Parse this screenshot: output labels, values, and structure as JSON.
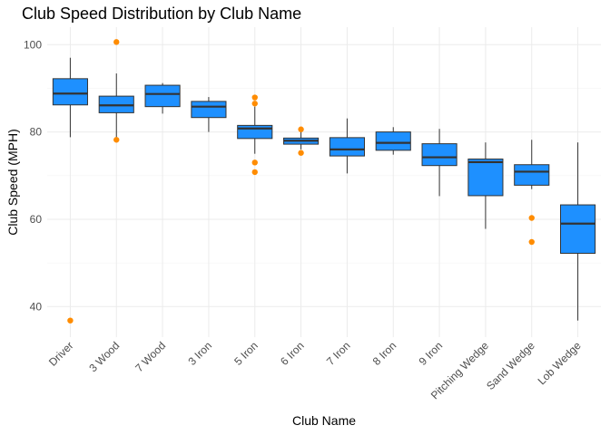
{
  "chart_data": {
    "type": "boxplot",
    "title": "Club Speed Distribution by Club Name",
    "xlabel": "Club Name",
    "ylabel": "Club Speed (MPH)",
    "ylim": [
      33,
      104
    ],
    "yticks": [
      40,
      60,
      80,
      100
    ],
    "grid": true,
    "legend": "none",
    "colors": {
      "box_fill": "#1e90ff",
      "outlier": "#ff8c00",
      "line": "#333333",
      "grid": "#ebebeb"
    },
    "categories": [
      "Driver",
      "3 Wood",
      "7 Wood",
      "3 Iron",
      "5 Iron",
      "6 Iron",
      "7 Iron",
      "8 Iron",
      "9 Iron",
      "Pitching Wedge",
      "Sand Wedge",
      "Lob Wedge"
    ],
    "boxes": [
      {
        "category": "Driver",
        "lower_whisker": 78.8,
        "q1": 86.2,
        "median": 88.8,
        "q3": 92.2,
        "upper_whisker": 97.0,
        "outliers": [
          36.8
        ]
      },
      {
        "category": "3 Wood",
        "lower_whisker": 78.6,
        "q1": 84.4,
        "median": 86.1,
        "q3": 88.2,
        "upper_whisker": 93.4,
        "outliers": [
          100.6,
          78.2
        ]
      },
      {
        "category": "7 Wood",
        "lower_whisker": 84.2,
        "q1": 85.8,
        "median": 88.7,
        "q3": 90.7,
        "upper_whisker": 91.2,
        "outliers": []
      },
      {
        "category": "3 Iron",
        "lower_whisker": 80.0,
        "q1": 83.3,
        "median": 85.8,
        "q3": 87.0,
        "upper_whisker": 88.0,
        "outliers": []
      },
      {
        "category": "5 Iron",
        "lower_whisker": 75.0,
        "q1": 78.5,
        "median": 80.8,
        "q3": 81.5,
        "upper_whisker": 85.8,
        "outliers": [
          87.9,
          86.5,
          73.0,
          70.8
        ]
      },
      {
        "category": "6 Iron",
        "lower_whisker": 76.0,
        "q1": 77.2,
        "median": 78.0,
        "q3": 78.6,
        "upper_whisker": 80.2,
        "outliers": [
          80.6,
          75.2
        ]
      },
      {
        "category": "7 Iron",
        "lower_whisker": 70.5,
        "q1": 74.5,
        "median": 76.0,
        "q3": 78.7,
        "upper_whisker": 83.1,
        "outliers": []
      },
      {
        "category": "8 Iron",
        "lower_whisker": 74.8,
        "q1": 75.8,
        "median": 77.5,
        "q3": 80.0,
        "upper_whisker": 81.1,
        "outliers": []
      },
      {
        "category": "9 Iron",
        "lower_whisker": 65.3,
        "q1": 72.3,
        "median": 74.2,
        "q3": 77.3,
        "upper_whisker": 80.7,
        "outliers": []
      },
      {
        "category": "Pitching Wedge",
        "lower_whisker": 57.8,
        "q1": 65.4,
        "median": 73.1,
        "q3": 73.8,
        "upper_whisker": 77.6,
        "outliers": []
      },
      {
        "category": "Sand Wedge",
        "lower_whisker": 66.9,
        "q1": 67.8,
        "median": 70.9,
        "q3": 72.5,
        "upper_whisker": 78.2,
        "outliers": [
          60.3,
          54.8
        ]
      },
      {
        "category": "Lob Wedge",
        "lower_whisker": 36.8,
        "q1": 52.2,
        "median": 59.0,
        "q3": 63.3,
        "upper_whisker": 77.6,
        "outliers": []
      }
    ]
  }
}
